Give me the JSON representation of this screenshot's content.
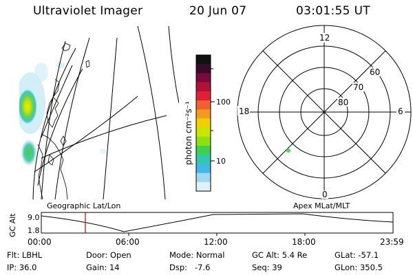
{
  "header": {
    "title": "Ultraviolet Imager",
    "date": "20 Jun 07",
    "time": "03:01:55 UT"
  },
  "colorbar": {
    "label": "photon cm⁻²s⁻¹",
    "ticks": [
      "100",
      "10"
    ],
    "colors": [
      "#111111",
      "#3a0a2a",
      "#7a0a3a",
      "#b0103a",
      "#e0203a",
      "#f06030",
      "#f39a20",
      "#f0d000",
      "#c8e600",
      "#8ee010",
      "#40d050",
      "#30c8b0",
      "#40b8e8",
      "#a0d8f0",
      "#e0f0f8"
    ]
  },
  "polar": {
    "mlt_labels": {
      "top": "12",
      "left": "18",
      "right": "6",
      "bottom": "0"
    },
    "lat_labels": [
      "60",
      "70",
      "80"
    ],
    "point_color": "#44dd44"
  },
  "altitude_plot": {
    "left_title": "Geographic Lat/Lon",
    "right_title": "Apex MLat/MLT",
    "ylabel": "GC Alt",
    "yticks": [
      "9.0",
      "1.8"
    ],
    "xticks": [
      "00:00",
      "06:00",
      "12:00",
      "18:00",
      "23:59"
    ],
    "marker_color": "#cc0000"
  },
  "info": {
    "flt_label": "Flt:",
    "flt_value": "LBHL",
    "ip_label": "IP:",
    "ip_value": "36.0",
    "door_label": "Door:",
    "door_value": "Open",
    "gain_label": "Gain:",
    "gain_value": "14",
    "mode_label": "Mode:",
    "mode_value": "Normal",
    "dsp_label": "Dsp:",
    "dsp_value": "-7.6",
    "gcalt_label": "GC Alt:",
    "gcalt_value": "5.4 Re",
    "seq_label": "Seq:",
    "seq_value": "39",
    "glat_label": "GLat:",
    "glat_value": "-57.1",
    "glon_label": "GLon:",
    "glon_value": "350.5"
  }
}
